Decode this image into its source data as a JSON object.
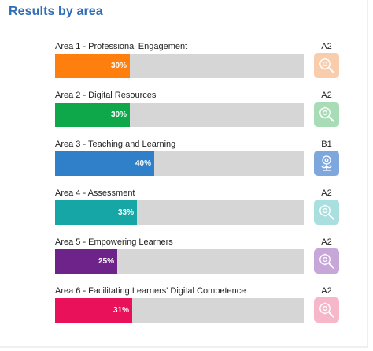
{
  "title": "Results by area",
  "areas": [
    {
      "label": "Area 1 - Professional Engagement",
      "percent": 30,
      "percent_label": "30%",
      "level": "A2",
      "bar_color": "#ff7f0e",
      "badge_color": "#f9ccac",
      "icon": "gear-magnifier-icon"
    },
    {
      "label": "Area 2 - Digital Resources",
      "percent": 30,
      "percent_label": "30%",
      "level": "A2",
      "bar_color": "#0ea84a",
      "badge_color": "#a8dcb6",
      "icon": "gear-magnifier-icon"
    },
    {
      "label": "Area 3 - Teaching and Learning",
      "percent": 40,
      "percent_label": "40%",
      "level": "B1",
      "bar_color": "#2f80c9",
      "badge_color": "#7ea8dd",
      "icon": "gear-plant-icon"
    },
    {
      "label": "Area 4 - Assessment",
      "percent": 33,
      "percent_label": "33%",
      "level": "A2",
      "bar_color": "#16a6a6",
      "badge_color": "#aadfe0",
      "icon": "gear-magnifier-icon"
    },
    {
      "label": "Area 5 - Empowering Learners",
      "percent": 25,
      "percent_label": "25%",
      "level": "A2",
      "bar_color": "#6d238a",
      "badge_color": "#c7a7d8",
      "icon": "gear-magnifier-icon"
    },
    {
      "label": "Area 6 - Facilitating Learners' Digital Competence",
      "percent": 31,
      "percent_label": "31%",
      "level": "A2",
      "bar_color": "#e8115a",
      "badge_color": "#f6b7c9",
      "icon": "gear-magnifier-icon"
    }
  ]
}
